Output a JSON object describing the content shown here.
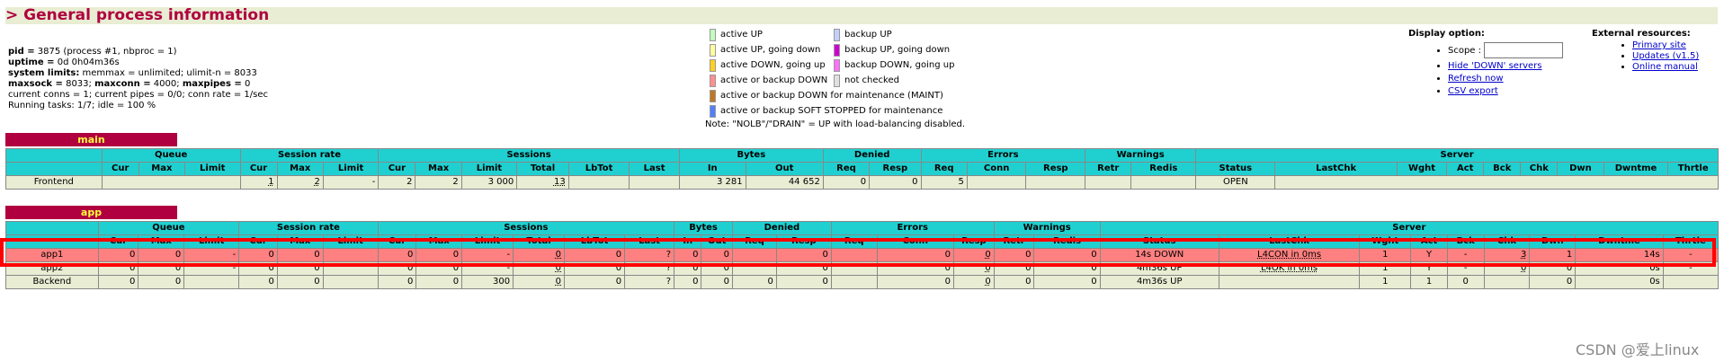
{
  "title": "> General process information",
  "info": {
    "line1_bold": "pid =",
    "line1": "3875 (process #1, nbproc = 1)",
    "line2_bold": "uptime =",
    "line2": "0d 0h04m36s",
    "line3_bold": "system limits:",
    "line3": "memmax = unlimited; ulimit-n = 8033",
    "line4_b1": "maxsock =",
    "line4_v1": "8033;",
    "line4_b2": "maxconn =",
    "line4_v2": "4000;",
    "line4_b3": "maxpipes =",
    "line4_v3": "0",
    "line5": "current conns = 1; current pipes = 0/0; conn rate = 1/sec",
    "line6": "Running tasks: 1/7; idle = 100 %"
  },
  "legend": {
    "colors": {
      "active_up": "#c0ffc0",
      "active_up_going_down": "#ffffa0",
      "active_down_going_up": "#ffd020",
      "down": "#ff9090",
      "maint": "#c07820",
      "soft_stopped": "#5080ff",
      "backup_up": "#c0d0ff",
      "backup_up_going_down": "#d000d0",
      "backup_down_going_up": "#ff70ff",
      "not_checked": "#e0e0e0"
    },
    "active_up": "active UP",
    "active_up_going_down": "active UP, going down",
    "active_down_going_up": "active DOWN, going up",
    "active_or_backup_down": "active or backup DOWN",
    "maint": "active or backup DOWN for maintenance (MAINT)",
    "soft_stopped": "active or backup SOFT STOPPED for maintenance",
    "backup_up": "backup UP",
    "backup_up_going_down": "backup UP, going down",
    "backup_down_going_up": "backup DOWN, going up",
    "not_checked": "not checked",
    "note": "Note: \"NOLB\"/\"DRAIN\" = UP with load-balancing disabled."
  },
  "display_option": {
    "heading": "Display option:",
    "scope_label": "Scope :",
    "scope_value": "",
    "hide_down": "Hide 'DOWN' servers",
    "refresh": "Refresh now",
    "csv": "CSV export"
  },
  "external": {
    "heading": "External resources:",
    "primary": "Primary site",
    "updates": "Updates (v1.5)",
    "manual": "Online manual"
  },
  "groups": {
    "queue": "Queue",
    "session_rate": "Session rate",
    "sessions": "Sessions",
    "bytes": "Bytes",
    "denied": "Denied",
    "errors": "Errors",
    "warnings": "Warnings",
    "server": "Server"
  },
  "cols": {
    "cur": "Cur",
    "max": "Max",
    "limit": "Limit",
    "total": "Total",
    "lbtot": "LbTot",
    "last": "Last",
    "in": "In",
    "out": "Out",
    "req": "Req",
    "resp": "Resp",
    "conn": "Conn",
    "retr": "Retr",
    "redis": "Redis",
    "status": "Status",
    "lastchk": "LastChk",
    "wght": "Wght",
    "act": "Act",
    "bck": "Bck",
    "chk": "Chk",
    "dwn": "Dwn",
    "dwntme": "Dwntme",
    "thrtle": "Thrtle"
  },
  "main": {
    "name": "main",
    "frontend": [
      "Frontend",
      "",
      "",
      "",
      "1",
      "2",
      "-",
      "2",
      "2",
      "3 000",
      "13",
      "",
      "",
      "3 281",
      "44 652",
      "0",
      "0",
      "5",
      "",
      "",
      "",
      "",
      "OPEN",
      "",
      "",
      "",
      "",
      "",
      "",
      "",
      ""
    ]
  },
  "app": {
    "name": "app",
    "rows": [
      [
        "app1",
        "0",
        "0",
        "-",
        "0",
        "0",
        "",
        "0",
        "0",
        "-",
        "0",
        "0",
        "?",
        "0",
        "0",
        "",
        "0",
        "",
        "0",
        "0",
        "0",
        "0",
        "14s DOWN",
        "L4CON in 0ms",
        "1",
        "Y",
        "-",
        "3",
        "1",
        "14s",
        "-"
      ],
      [
        "app2",
        "0",
        "0",
        "-",
        "0",
        "0",
        "",
        "0",
        "0",
        "-",
        "0",
        "0",
        "?",
        "0",
        "0",
        "",
        "0",
        "",
        "0",
        "0",
        "0",
        "0",
        "4m36s UP",
        "L4OK in 0ms",
        "1",
        "Y",
        "-",
        "0",
        "0",
        "0s",
        "-"
      ],
      [
        "Backend",
        "0",
        "0",
        "",
        "0",
        "0",
        "",
        "0",
        "0",
        "300",
        "0",
        "0",
        "?",
        "0",
        "0",
        "0",
        "0",
        "",
        "0",
        "0",
        "0",
        "0",
        "4m36s UP",
        "",
        "1",
        "1",
        "0",
        "",
        "0",
        "0s",
        ""
      ]
    ]
  },
  "watermark": "CSDN @爱上linux"
}
